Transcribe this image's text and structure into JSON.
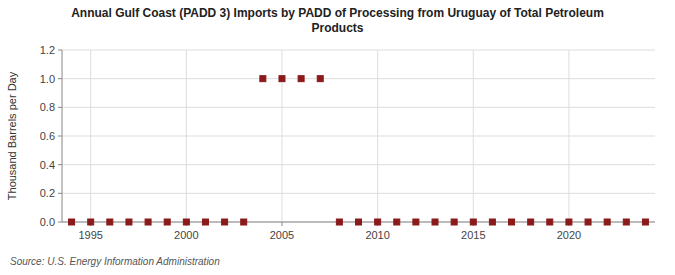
{
  "chart_data": {
    "type": "scatter",
    "title": "Annual Gulf Coast (PADD 3) Imports by PADD of Processing from Uruguay of Total Petroleum\nProducts",
    "y_label": "Thousand Barrels per Day",
    "source": "Source: U.S. Energy Information Administration",
    "x": [
      1994,
      1995,
      1996,
      1997,
      1998,
      1999,
      2000,
      2001,
      2002,
      2003,
      2004,
      2005,
      2006,
      2007,
      2008,
      2009,
      2010,
      2011,
      2012,
      2013,
      2014,
      2015,
      2016,
      2017,
      2018,
      2019,
      2020,
      2021,
      2022,
      2023,
      2024
    ],
    "values": [
      0,
      0,
      0,
      0,
      0,
      0,
      0,
      0,
      0,
      0,
      1.0,
      1.0,
      1.0,
      1.0,
      0,
      0,
      0,
      0,
      0,
      0,
      0,
      0,
      0,
      0,
      0,
      0,
      0,
      0,
      0,
      0,
      0
    ],
    "color": "#8b1a1a",
    "marker": "square",
    "xlim": [
      1993.5,
      2024.5
    ],
    "ylim": [
      0.0,
      1.2
    ],
    "xticks": [
      1995,
      2000,
      2005,
      2010,
      2015,
      2020
    ],
    "yticks": [
      {
        "value": 0.0,
        "label": "0.0"
      },
      0.2,
      0.4,
      0.6,
      0.8,
      {
        "value": 1.0,
        "label": "1.0"
      },
      1.2
    ],
    "grid": true
  }
}
